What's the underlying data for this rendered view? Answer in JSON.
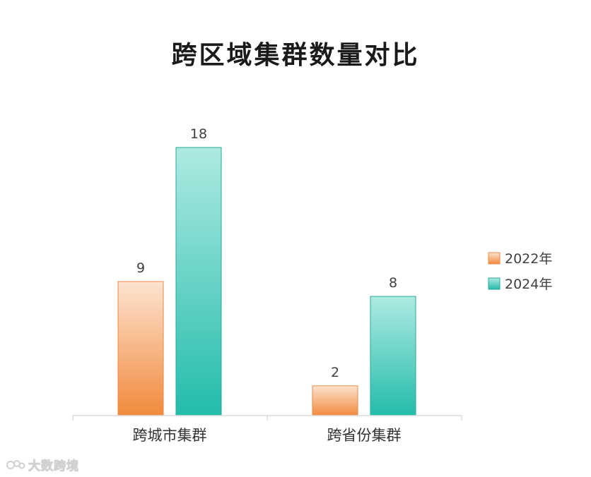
{
  "chart_data": {
    "type": "bar",
    "title": "跨区域集群数量对比",
    "categories": [
      "跨城市集群",
      "跨省份集群"
    ],
    "series": [
      {
        "name": "2022年",
        "values": [
          9,
          2
        ],
        "color_top": "#fde3d0",
        "color_bottom": "#f18a3c",
        "stroke": "#ec8a44"
      },
      {
        "name": "2024年",
        "values": [
          18,
          8
        ],
        "color_top": "#aeeae2",
        "color_bottom": "#23bcaa",
        "stroke": "#27aa9a"
      }
    ],
    "ylim": [
      0,
      18
    ],
    "grid": false,
    "legend": "right"
  },
  "watermark": {
    "text": "大数跨境"
  }
}
